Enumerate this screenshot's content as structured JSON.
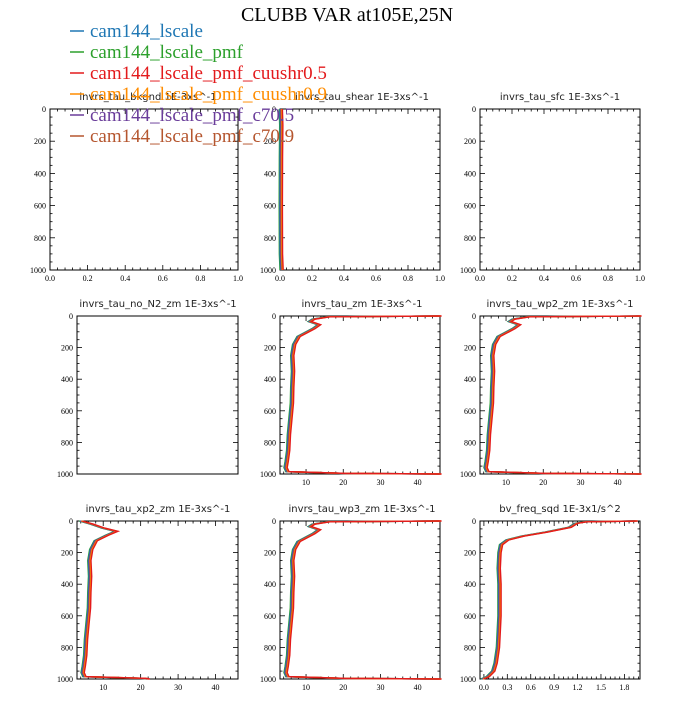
{
  "title": "CLUBB VAR at105E,25N",
  "legend": [
    {
      "name": "cam144_lscale",
      "color": "#1f77b4"
    },
    {
      "name": "cam144_lscale_pmf",
      "color": "#2ca02c"
    },
    {
      "name": "cam144_lscale_pmf_cuushr0.5",
      "color": "#e31a1c"
    },
    {
      "name": "cam144_lscale_pmf_cuushr0.9",
      "color": "#ff8c00"
    },
    {
      "name": "cam144_lscale_pmf_c70.5",
      "color": "#6a3d9a"
    },
    {
      "name": "cam144_lscale_pmf_c70.9",
      "color": "#b5562f"
    }
  ],
  "chart_data": [
    {
      "type": "line",
      "title": "invrs_tau_bkgnd   1E-3xs^-1",
      "xlim": [
        0,
        1
      ],
      "ylim": [
        1000,
        0
      ],
      "xticks": [
        "0.0",
        "0.2",
        "0.4",
        "0.6",
        "0.8",
        "1.0"
      ],
      "yticks": [
        "0",
        "200",
        "400",
        "600",
        "800",
        "1000"
      ],
      "profile": []
    },
    {
      "type": "line",
      "title": "invrs_tau_shear   1E-3xs^-1",
      "xlim": [
        0,
        1
      ],
      "ylim": [
        1000,
        0
      ],
      "xticks": [
        "0.0",
        "0.2",
        "0.4",
        "0.6",
        "0.8",
        "1.0"
      ],
      "yticks": [
        "0",
        "200",
        "400",
        "600",
        "800",
        "1000"
      ],
      "profile": [
        [
          0.005,
          0
        ],
        [
          0.008,
          100
        ],
        [
          0.006,
          300
        ],
        [
          0.005,
          600
        ],
        [
          0.006,
          900
        ],
        [
          0.01,
          1000
        ]
      ]
    },
    {
      "type": "line",
      "title": "invrs_tau_sfc   1E-3xs^-1",
      "xlim": [
        0,
        1
      ],
      "ylim": [
        1000,
        0
      ],
      "xticks": [
        "0.0",
        "0.2",
        "0.4",
        "0.6",
        "0.8",
        "1.0"
      ],
      "yticks": [
        "0",
        "200",
        "400",
        "600",
        "800",
        "1000"
      ],
      "profile": []
    },
    {
      "type": "line",
      "title": "invrs_tau_no_N2_zm   1E-3xs^-1",
      "xlim": [
        0,
        1
      ],
      "ylim": [
        1000,
        0
      ],
      "xticks": [],
      "yticks": [
        "0",
        "200",
        "400",
        "600",
        "800",
        "1000"
      ],
      "profile": []
    },
    {
      "type": "line",
      "title": "invrs_tau_zm   1E-3xs^-1",
      "xlim": [
        3,
        46
      ],
      "ylim": [
        1000,
        0
      ],
      "xticks": [
        "10",
        "20",
        "30",
        "40"
      ],
      "yticks": [
        "0",
        "200",
        "400",
        "600",
        "800",
        "1000"
      ],
      "profile": [
        [
          46,
          0
        ],
        [
          16,
          5
        ],
        [
          12,
          20
        ],
        [
          11,
          35
        ],
        [
          13.5,
          55
        ],
        [
          12,
          80
        ],
        [
          8,
          130
        ],
        [
          6.8,
          180
        ],
        [
          6.3,
          250
        ],
        [
          6.5,
          350
        ],
        [
          6.3,
          450
        ],
        [
          6.2,
          550
        ],
        [
          5.8,
          650
        ],
        [
          5.4,
          750
        ],
        [
          5.2,
          850
        ],
        [
          4.8,
          920
        ],
        [
          4.5,
          960
        ],
        [
          5,
          985
        ],
        [
          20,
          996
        ],
        [
          46,
          1000
        ]
      ]
    },
    {
      "type": "line",
      "title": "invrs_tau_wp2_zm   1E-3xs^-1",
      "xlim": [
        3,
        46
      ],
      "ylim": [
        1000,
        0
      ],
      "xticks": [
        "10",
        "20",
        "30",
        "40"
      ],
      "yticks": [
        "0",
        "200",
        "400",
        "600",
        "800",
        "1000"
      ],
      "profile": [
        [
          46,
          0
        ],
        [
          16,
          5
        ],
        [
          12,
          20
        ],
        [
          11,
          35
        ],
        [
          13.5,
          55
        ],
        [
          12,
          80
        ],
        [
          8,
          130
        ],
        [
          6.8,
          180
        ],
        [
          6.3,
          250
        ],
        [
          6.5,
          350
        ],
        [
          6.3,
          450
        ],
        [
          6.2,
          550
        ],
        [
          5.8,
          650
        ],
        [
          5.4,
          750
        ],
        [
          5.2,
          850
        ],
        [
          4.8,
          920
        ],
        [
          4.5,
          960
        ],
        [
          5,
          985
        ],
        [
          20,
          996
        ],
        [
          46,
          1000
        ]
      ]
    },
    {
      "type": "line",
      "title": "invrs_tau_xp2_zm   1E-3xs^-1",
      "xlim": [
        3,
        46
      ],
      "ylim": [
        1000,
        0
      ],
      "xticks": [
        "10",
        "20",
        "30",
        "40"
      ],
      "yticks": [
        "0",
        "200",
        "400",
        "600",
        "800",
        "1000"
      ],
      "profile": [
        [
          4,
          0
        ],
        [
          7,
          20
        ],
        [
          10,
          45
        ],
        [
          13.5,
          65
        ],
        [
          11,
          90
        ],
        [
          8,
          125
        ],
        [
          6.8,
          180
        ],
        [
          6.3,
          250
        ],
        [
          6.5,
          350
        ],
        [
          6.3,
          450
        ],
        [
          6.2,
          550
        ],
        [
          5.8,
          650
        ],
        [
          5.4,
          750
        ],
        [
          5.2,
          850
        ],
        [
          4.8,
          920
        ],
        [
          4.5,
          960
        ],
        [
          5,
          985
        ],
        [
          21,
          996
        ],
        [
          22,
          1000
        ]
      ]
    },
    {
      "type": "line",
      "title": "invrs_tau_wp3_zm   1E-3xs^-1",
      "xlim": [
        3,
        46
      ],
      "ylim": [
        1000,
        0
      ],
      "xticks": [
        "10",
        "20",
        "30",
        "40"
      ],
      "yticks": [
        "0",
        "200",
        "400",
        "600",
        "800",
        "1000"
      ],
      "profile": [
        [
          46,
          0
        ],
        [
          16,
          5
        ],
        [
          12,
          20
        ],
        [
          11,
          35
        ],
        [
          13.5,
          55
        ],
        [
          12,
          80
        ],
        [
          8,
          130
        ],
        [
          6.8,
          180
        ],
        [
          6.3,
          250
        ],
        [
          6.5,
          350
        ],
        [
          6.3,
          450
        ],
        [
          6.2,
          550
        ],
        [
          5.8,
          650
        ],
        [
          5.4,
          750
        ],
        [
          5.2,
          850
        ],
        [
          4.8,
          920
        ],
        [
          4.5,
          960
        ],
        [
          5,
          985
        ],
        [
          20,
          996
        ],
        [
          46,
          1000
        ]
      ]
    },
    {
      "type": "line",
      "title": "bv_freq_sqd   1E-3x1/s^2",
      "xlim": [
        -0.05,
        2.0
      ],
      "ylim": [
        1000,
        0
      ],
      "xticks": [
        "0.0",
        "0.3",
        "0.6",
        "0.9",
        "1.2",
        "1.5",
        "1.8"
      ],
      "yticks": [
        "0",
        "200",
        "400",
        "600",
        "800",
        "1000"
      ],
      "profile": [
        [
          1.95,
          0
        ],
        [
          1.3,
          5
        ],
        [
          1.18,
          15
        ],
        [
          1.1,
          40
        ],
        [
          0.8,
          70
        ],
        [
          0.5,
          95
        ],
        [
          0.3,
          120
        ],
        [
          0.22,
          150
        ],
        [
          0.2,
          200
        ],
        [
          0.19,
          300
        ],
        [
          0.2,
          400
        ],
        [
          0.2,
          500
        ],
        [
          0.2,
          600
        ],
        [
          0.19,
          700
        ],
        [
          0.18,
          800
        ],
        [
          0.15,
          900
        ],
        [
          0.12,
          950
        ],
        [
          0.05,
          985
        ],
        [
          -0.02,
          1000
        ]
      ]
    }
  ]
}
